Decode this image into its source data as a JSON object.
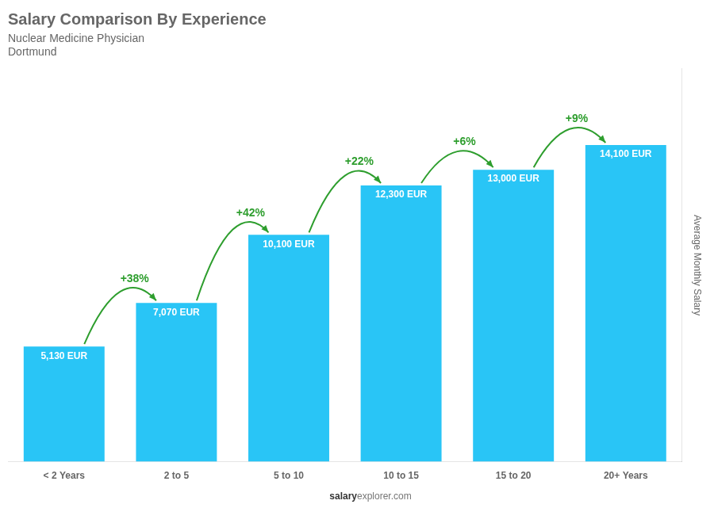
{
  "chart_data": {
    "type": "bar",
    "title": "Salary Comparison By Experience",
    "subtitle": "Nuclear Medicine Physician",
    "ylabel": "Average Monthly Salary",
    "categories": [
      "< 2 Years",
      "2 to 5",
      "5 to 10",
      "10 to 15",
      "15 to 20",
      "20+ Years"
    ],
    "values": [
      5130,
      7070,
      10100,
      12300,
      13000,
      14100
    ],
    "value_labels": [
      "5,130 EUR",
      "7,070 EUR",
      "10,100 EUR",
      "12,300 EUR",
      "13,000 EUR",
      "14,100 EUR"
    ],
    "data_labels": true,
    "color": "#29c5f6",
    "ylim": [
      0,
      17500
    ],
    "grid": false,
    "tick_labels": "x",
    "annotations": {
      "city": "Dortmund",
      "changes": [
        "+38%",
        "+42%",
        "+22%",
        "+6%",
        "+9%"
      ],
      "footer": [
        "salary",
        "explorer.com"
      ]
    }
  }
}
